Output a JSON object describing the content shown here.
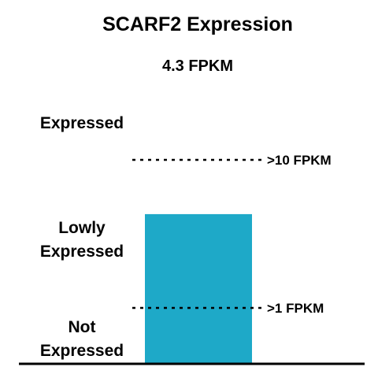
{
  "chart_data": {
    "type": "bar",
    "title": "SCARF2 Expression",
    "subtitle": "4.3 FPKM",
    "categories": [
      "SCARF2"
    ],
    "values": [
      4.3
    ],
    "unit": "FPKM",
    "scale": "log",
    "ylim": [
      0.1,
      30
    ],
    "thresholds": [
      {
        "value": 10,
        "label": ">10 FPKM"
      },
      {
        "value": 1,
        "label": ">1 FPKM"
      }
    ],
    "zones": {
      "expressed": "Expressed",
      "lowly_line1": "Lowly",
      "lowly_line2": "Expressed",
      "not_line1": "Not",
      "not_line2": "Expressed"
    },
    "bar_color": "#1ea9c8",
    "grid": false,
    "legend": "none"
  }
}
